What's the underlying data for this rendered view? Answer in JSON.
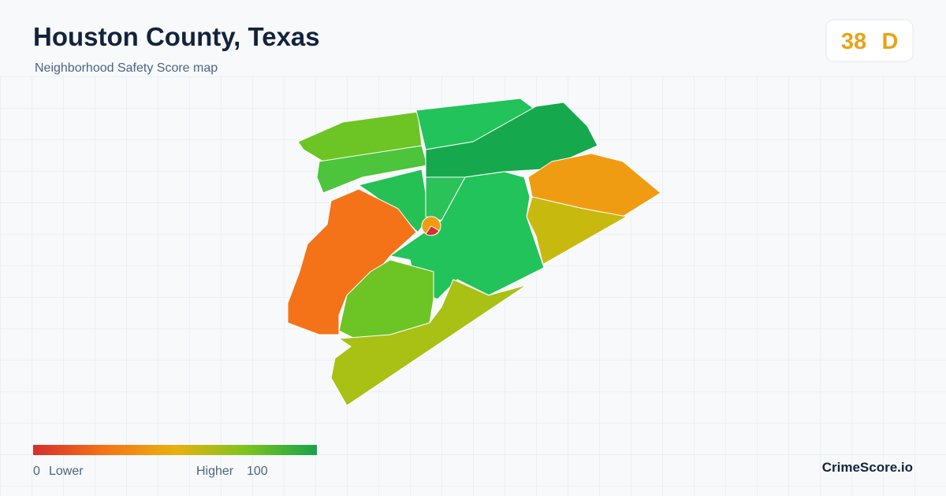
{
  "header": {
    "title": "Houston County, Texas",
    "subtitle": "Neighborhood Safety Score map"
  },
  "score": {
    "value": 38,
    "grade": "D"
  },
  "legend": {
    "min": 0,
    "min_label": "Lower",
    "max_label": "Higher",
    "max": 100
  },
  "brand": "CrimeScore.io"
}
